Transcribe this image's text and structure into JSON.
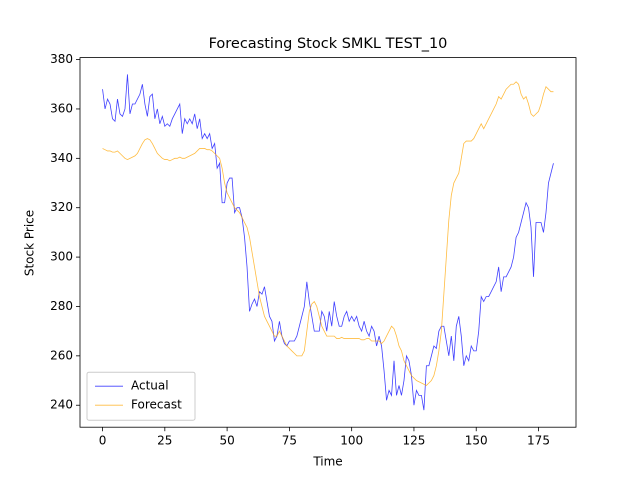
{
  "chart_data": {
    "type": "line",
    "title": "Forecasting Stock SMKL TEST_10",
    "x_label": "Time",
    "y_label": "Stock Price",
    "x": [
      0,
      1,
      2,
      3,
      4,
      5,
      6,
      7,
      8,
      9,
      10,
      11,
      12,
      13,
      14,
      15,
      16,
      17,
      18,
      19,
      20,
      21,
      22,
      23,
      24,
      25,
      26,
      27,
      28,
      29,
      30,
      31,
      32,
      33,
      34,
      35,
      36,
      37,
      38,
      39,
      40,
      41,
      42,
      43,
      44,
      45,
      46,
      47,
      48,
      49,
      50,
      51,
      52,
      53,
      54,
      55,
      56,
      57,
      58,
      59,
      60,
      61,
      62,
      63,
      64,
      65,
      66,
      67,
      68,
      69,
      70,
      71,
      72,
      73,
      74,
      75,
      76,
      77,
      78,
      79,
      80,
      81,
      82,
      83,
      84,
      85,
      86,
      87,
      88,
      89,
      90,
      91,
      92,
      93,
      94,
      95,
      96,
      97,
      98,
      99,
      100,
      101,
      102,
      103,
      104,
      105,
      106,
      107,
      108,
      109,
      110,
      111,
      112,
      113,
      114,
      115,
      116,
      117,
      118,
      119,
      120,
      121,
      122,
      123,
      124,
      125,
      126,
      127,
      128,
      129,
      130,
      131,
      132,
      133,
      134,
      135,
      136,
      137,
      138,
      139,
      140,
      141,
      142,
      143,
      144,
      145,
      146,
      147,
      148,
      149,
      150,
      151,
      152,
      153,
      154,
      155,
      156,
      157,
      158,
      159,
      160,
      161,
      162,
      163,
      164,
      165,
      166,
      167,
      168,
      169,
      170,
      171,
      172,
      173,
      174,
      175,
      176,
      177,
      178,
      179,
      180,
      181
    ],
    "series": [
      {
        "name": "Actual",
        "color": "#0000ff",
        "values": [
          368,
          360,
          364,
          362,
          356,
          355,
          364,
          358,
          357,
          360,
          374,
          358,
          362,
          362,
          364,
          366,
          370,
          362,
          357,
          365,
          366,
          356,
          360,
          354,
          357,
          353,
          354,
          353,
          356,
          358,
          360,
          362,
          350,
          356,
          354,
          356,
          354,
          358,
          352,
          356,
          348,
          350,
          348,
          350,
          344,
          346,
          336,
          338,
          322,
          322,
          330,
          332,
          332,
          318,
          320,
          320,
          316,
          308,
          296,
          278,
          281,
          283,
          280,
          286,
          285,
          288,
          282,
          276,
          274,
          266,
          268,
          274,
          268,
          265,
          264,
          266,
          266,
          266,
          268,
          272,
          276,
          280,
          290,
          282,
          276,
          270,
          270,
          270,
          278,
          276,
          270,
          278,
          272,
          282,
          276,
          272,
          272,
          276,
          278,
          274,
          276,
          274,
          276,
          272,
          270,
          274,
          270,
          268,
          272,
          270,
          264,
          268,
          264,
          254,
          242,
          246,
          244,
          258,
          244,
          248,
          244,
          250,
          260,
          258,
          252,
          240,
          246,
          244,
          244,
          238,
          256,
          256,
          260,
          264,
          263,
          270,
          272,
          272,
          266,
          260,
          268,
          258,
          272,
          276,
          268,
          256,
          260,
          258,
          264,
          262,
          262,
          270,
          284,
          282,
          284,
          284,
          286,
          288,
          290,
          296,
          286,
          292,
          292,
          294,
          296,
          300,
          308,
          310,
          314,
          318,
          322,
          320,
          312,
          292,
          314,
          314,
          314,
          310,
          318,
          330,
          334,
          338
        ]
      },
      {
        "name": "Forecast",
        "color": "#ffa500",
        "values": [
          344,
          343.5,
          343,
          343,
          342.5,
          342.5,
          343,
          342,
          341,
          340,
          339.5,
          340,
          340.5,
          341,
          342,
          344,
          346,
          347.5,
          348,
          347.5,
          346,
          344,
          342,
          341,
          340,
          339.5,
          339.5,
          339,
          339.5,
          340,
          340,
          340.5,
          340,
          340,
          340.5,
          341,
          341.5,
          342,
          343,
          344,
          344,
          344,
          343.5,
          343.5,
          343,
          342,
          341,
          340,
          336,
          330,
          326,
          324,
          322,
          320,
          319,
          318,
          316,
          314,
          312,
          308,
          302,
          296,
          290,
          284,
          280,
          276,
          274,
          272,
          270,
          268,
          268,
          270,
          268,
          266,
          264,
          263,
          262,
          261,
          260,
          260,
          260,
          262,
          270,
          278,
          281,
          282,
          280,
          276,
          272,
          270,
          268,
          268,
          268,
          268,
          267,
          267,
          267.5,
          267,
          267,
          267,
          267,
          267,
          267,
          267,
          266.5,
          266.5,
          267,
          267,
          266,
          266,
          266,
          266,
          265,
          266,
          268,
          270,
          272,
          271,
          268,
          264,
          262,
          258,
          256,
          254,
          252,
          251,
          250,
          249.5,
          249,
          248.5,
          248,
          249,
          250,
          252,
          256,
          262,
          270,
          285,
          300,
          315,
          325,
          330,
          332,
          334,
          340,
          346,
          347,
          347,
          347,
          348,
          350,
          352,
          354,
          352,
          354,
          356,
          358,
          360,
          362,
          365,
          364,
          366,
          368,
          369,
          370,
          370,
          371,
          370,
          366,
          364,
          365,
          362,
          358,
          357,
          358,
          359,
          362,
          366,
          369,
          368,
          367,
          367
        ]
      }
    ],
    "xlim": [
      -9.05,
      190.05
    ],
    "xticks": [
      0,
      25,
      50,
      75,
      100,
      125,
      150,
      175
    ],
    "ylim": [
      231.1,
      380.8
    ],
    "yticks": [
      240,
      260,
      280,
      300,
      320,
      340,
      360,
      380
    ],
    "legend": "lower left"
  }
}
